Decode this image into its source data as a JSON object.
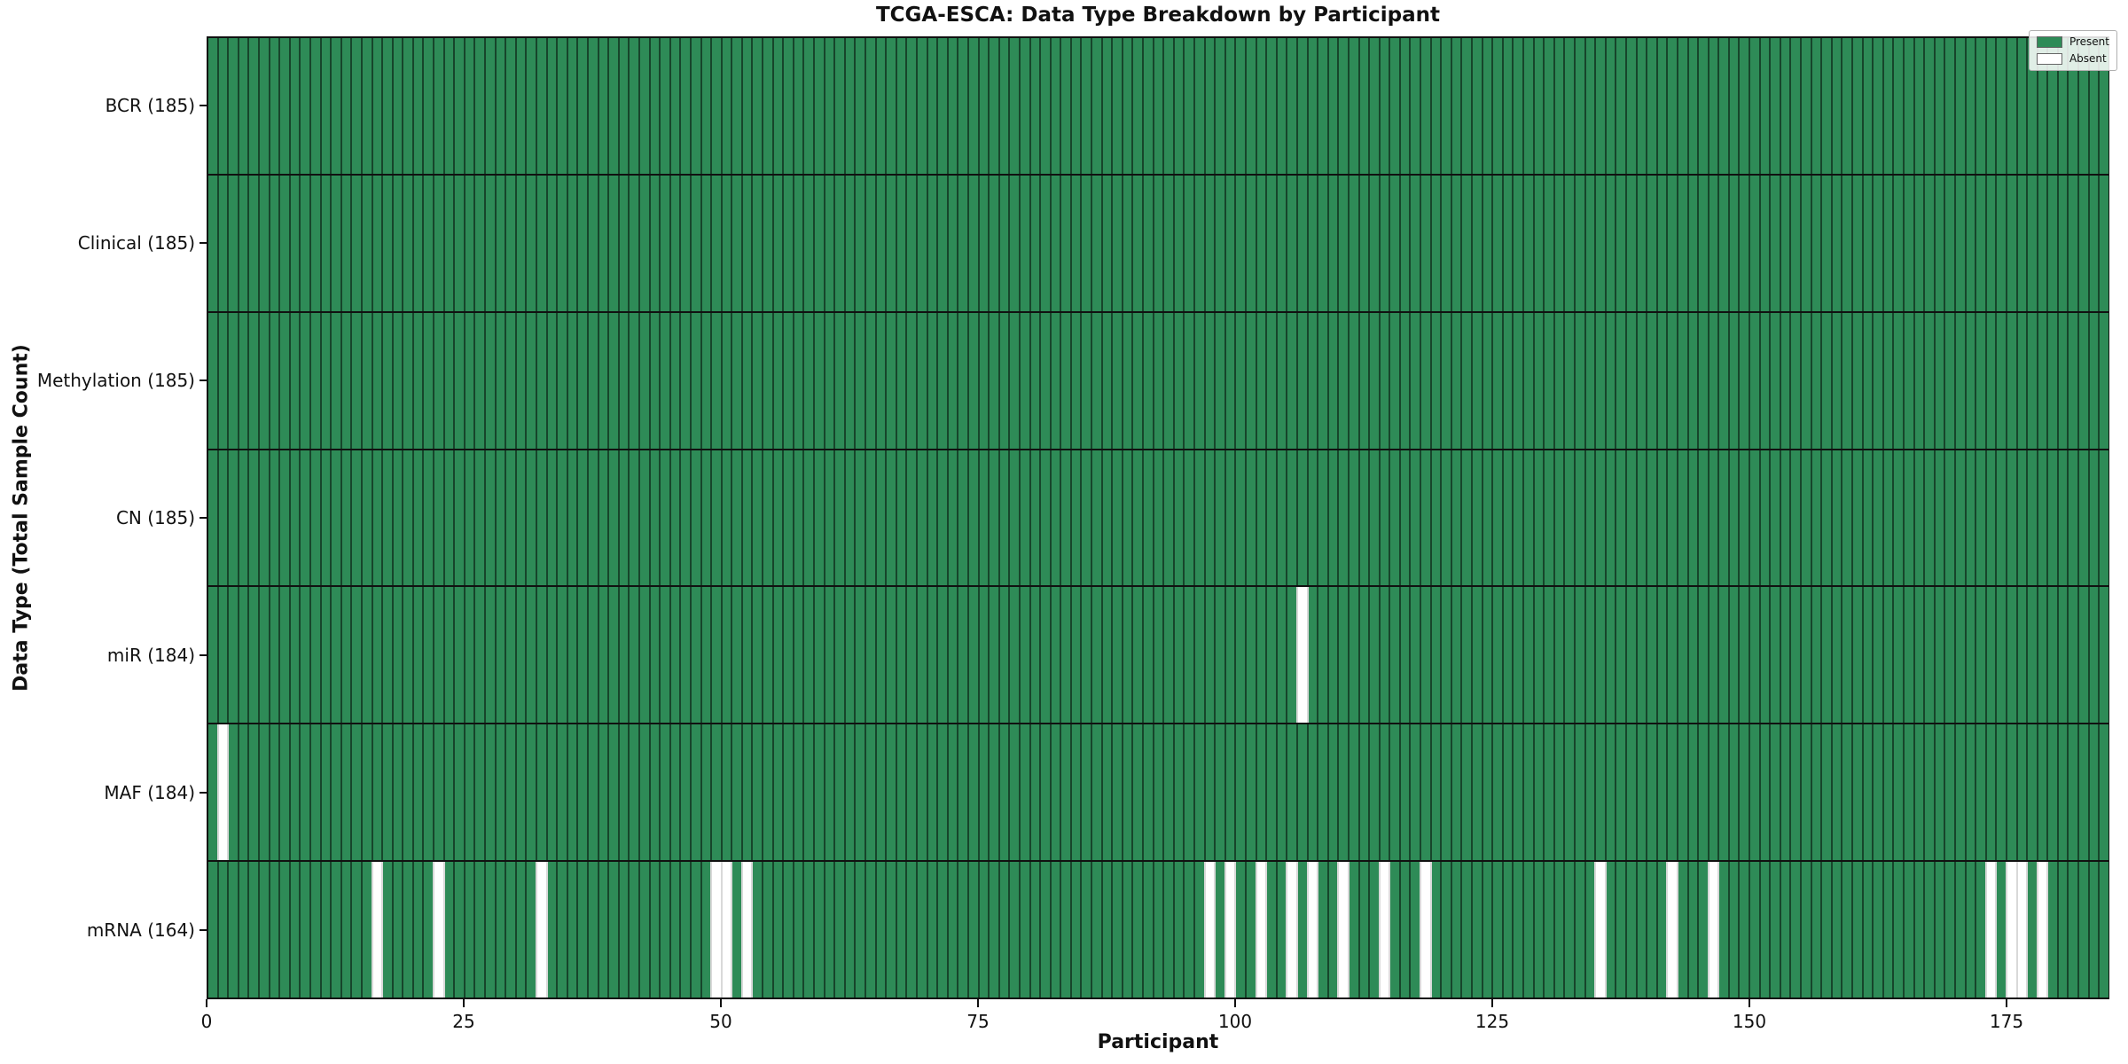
{
  "title": "TCGA-ESCA: Data Type Breakdown by Participant",
  "xlabel": "Participant",
  "ylabel": "Data Type (Total Sample Count)",
  "legend": {
    "entries": [
      {
        "label": "Present",
        "color": "#2e8b57"
      },
      {
        "label": "Absent",
        "color": "#ffffff"
      }
    ]
  },
  "colors": {
    "present": "#2e8b57",
    "absent": "#ffffff",
    "cell_edge": "rgba(0,0,0,0.50)",
    "absent_edge": "#d9d9d9",
    "axis": "#111111"
  },
  "chart_data": {
    "type": "heatmap",
    "n_participants": 185,
    "x_ticks": [
      0,
      25,
      50,
      75,
      100,
      125,
      150,
      175
    ],
    "x_axis_range": [
      0,
      185
    ],
    "grid": false,
    "legend_position": "upper right",
    "rows": [
      {
        "name": "BCR",
        "label": "BCR (185)",
        "present_count": 185,
        "absent_participants": []
      },
      {
        "name": "Clinical",
        "label": "Clinical (185)",
        "present_count": 185,
        "absent_participants": []
      },
      {
        "name": "Methylation",
        "label": "Methylation (185)",
        "present_count": 185,
        "absent_participants": []
      },
      {
        "name": "CN",
        "label": "CN (185)",
        "present_count": 185,
        "absent_participants": []
      },
      {
        "name": "miR",
        "label": "miR (184)",
        "present_count": 184,
        "absent_participants": [
          106
        ]
      },
      {
        "name": "MAF",
        "label": "MAF (184)",
        "present_count": 184,
        "absent_participants": [
          1
        ]
      },
      {
        "name": "mRNA",
        "label": "mRNA (164)",
        "present_count": 164,
        "absent_participants": [
          16,
          22,
          32,
          49,
          50,
          52,
          97,
          99,
          102,
          105,
          107,
          110,
          114,
          118,
          135,
          142,
          146,
          173,
          175,
          176,
          178
        ]
      }
    ]
  }
}
